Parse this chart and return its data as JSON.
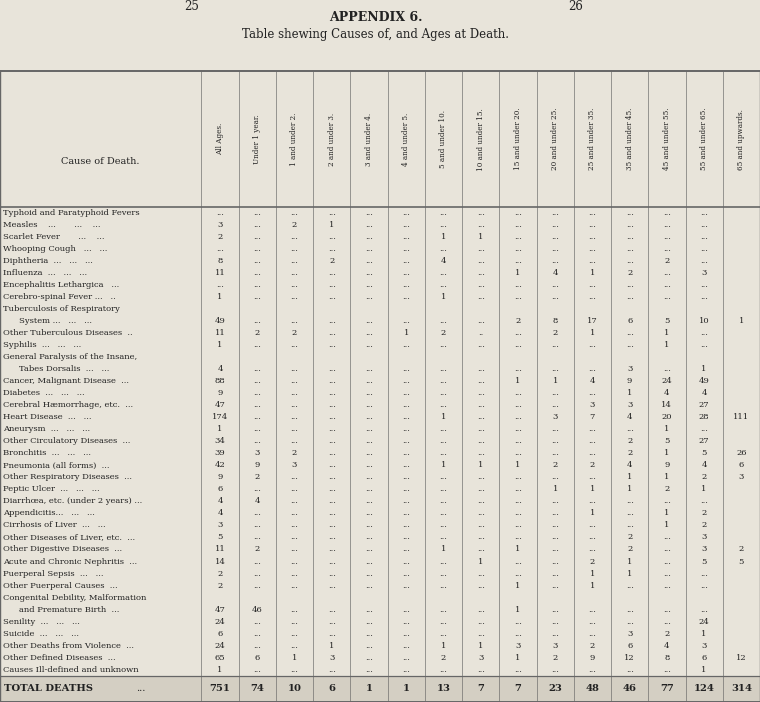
{
  "title1": "APPENDIX 6.",
  "title2": "Table shewing Causes of, and Ages at Death.",
  "page_left": "25",
  "page_right": "26",
  "col_headers": [
    "All Ages.",
    "Under 1 year.",
    "1 and under 2.",
    "2 and under 3.",
    "3 and under 4.",
    "4 and under 5.",
    "5 and under 10.",
    "10 and under 15.",
    "15 and under 20.",
    "20 and under 25.",
    "25 and under 35.",
    "35 and under 45.",
    "45 and under 55.",
    "55 and under 65.",
    "65 and upwards."
  ],
  "rows": [
    [
      "Typhoid and Paratyphoid Fevers",
      "...",
      "...",
      "...",
      "...",
      "...",
      "...",
      "...",
      "...",
      "...",
      "...",
      "...",
      "...",
      "...",
      "..."
    ],
    [
      "Measles    ...       ...    ...",
      "3",
      "...",
      "2",
      "1",
      "...",
      "...",
      "...",
      "...",
      "...",
      "...",
      "...",
      "...",
      "...",
      "..."
    ],
    [
      "Scarlet Fever       ...    ...",
      "2",
      "...",
      "...",
      "...",
      "...",
      "...",
      "1",
      "1",
      "...",
      "...",
      "...",
      "...",
      "...",
      "..."
    ],
    [
      "Whooping Cough   ...   ...",
      "...",
      "...",
      "...",
      "...",
      "...",
      "...",
      "...",
      "...",
      "...",
      "...",
      "...",
      "...",
      "...",
      "..."
    ],
    [
      "Diphtheria  ...   ...   ...",
      "8",
      "...",
      "...",
      "2",
      "...",
      "...",
      "4",
      "...",
      "...",
      "...",
      "...",
      "...",
      "2",
      "..."
    ],
    [
      "Influenza  ...   ...   ...",
      "11",
      "...",
      "...",
      "...",
      "...",
      "...",
      "...",
      "...",
      "1",
      "4",
      "1",
      "2",
      "...",
      "3"
    ],
    [
      "Encephalitis Lethargica   ...",
      "...",
      "...",
      "...",
      "...",
      "...",
      "...",
      "...",
      "...",
      "...",
      "...",
      "...",
      "...",
      "...",
      "..."
    ],
    [
      "Cerebro-spinal Fever ...   ..",
      "1",
      "...",
      "...",
      "...",
      "...",
      "...",
      "1",
      "...",
      "...",
      "...",
      "...",
      "...",
      "...",
      "..."
    ],
    [
      "Tuberculosis of Respiratory",
      "",
      "",
      "",
      "",
      "",
      "",
      "",
      "",
      "",
      "",
      "",
      "",
      "",
      ""
    ],
    [
      "    System ...   ...   ...",
      "49",
      "...",
      "...",
      "...",
      "...",
      "...",
      "...",
      "...",
      "2",
      "8",
      "17",
      "6",
      "5",
      "10",
      "1"
    ],
    [
      "Other Tuberculous Diseases  ..",
      "11",
      "2",
      "2",
      "...",
      "...",
      "1",
      "2",
      "..",
      "...",
      "2",
      "1",
      "...",
      "1",
      "..."
    ],
    [
      "Syphilis  ...   ...   ...",
      "1",
      "...",
      "...",
      "...",
      "...",
      "...",
      "...",
      "...",
      "...",
      "...",
      "...",
      "...",
      "1",
      "..."
    ],
    [
      "General Paralysis of the Insane,",
      "",
      "",
      "",
      "",
      "",
      "",
      "",
      "",
      "",
      "",
      "",
      "",
      "",
      ""
    ],
    [
      "    Tabes Dorsalis  ...   ...",
      "4",
      "...",
      "...",
      "...",
      "...",
      "...",
      "...",
      "...",
      "...",
      "...",
      "...",
      "3",
      "...",
      "1"
    ],
    [
      "Cancer, Malignant Disease  ...",
      "88",
      "...",
      "...",
      "...",
      "...",
      "...",
      "...",
      "...",
      "1",
      "1",
      "4",
      "9",
      "24",
      "49"
    ],
    [
      "Diabetes  ...   ...   ...",
      "9",
      "...",
      "...",
      "...",
      "...",
      "...",
      "...",
      "...",
      "...",
      "...",
      "...",
      "1",
      "4",
      "4"
    ],
    [
      "Cerebral Hæmorrhage, etc.  ...",
      "47",
      "...",
      "...",
      "...",
      "...",
      "...",
      "...",
      "...",
      "...",
      "...",
      "3",
      "3",
      "14",
      "27"
    ],
    [
      "Heart Disease  ...   ...",
      "174",
      "...",
      "...",
      "...",
      "...",
      "...",
      "1",
      "...",
      "...",
      "3",
      "7",
      "4",
      "20",
      "28",
      "111"
    ],
    [
      "Aneurysm  ...   ...   ...",
      "1",
      "...",
      "...",
      "...",
      "...",
      "...",
      "...",
      "...",
      "...",
      "...",
      "...",
      "...",
      "1",
      "..."
    ],
    [
      "Other Circulatory Diseases  ...",
      "34",
      "...",
      "...",
      "...",
      "...",
      "...",
      "...",
      "...",
      "...",
      "...",
      "...",
      "2",
      "5",
      "27"
    ],
    [
      "Bronchitis  ...   ...   ...",
      "39",
      "3",
      "2",
      "...",
      "...",
      "...",
      "...",
      "...",
      "...",
      "...",
      "...",
      "2",
      "1",
      "5",
      "26"
    ],
    [
      "Pneumonia (all forms)  ...",
      "42",
      "9",
      "3",
      "...",
      "...",
      "...",
      "1",
      "1",
      "1",
      "2",
      "2",
      "4",
      "9",
      "4",
      "6"
    ],
    [
      "Other Respiratory Diseases  ...",
      "9",
      "2",
      "...",
      "...",
      "...",
      "...",
      "...",
      "...",
      "...",
      "...",
      "...",
      "1",
      "1",
      "2",
      "3"
    ],
    [
      "Peptic Ulcer  ...   ...   ...",
      "6",
      "...",
      "...",
      "...",
      "...",
      "...",
      "...",
      "...",
      "...",
      "1",
      "1",
      "1",
      "2",
      "1"
    ],
    [
      "Diarrhœa, etc. (under 2 years) ...",
      "4",
      "4",
      "...",
      "...",
      "...",
      "...",
      "...",
      "...",
      "...",
      "...",
      "...",
      "...",
      "...",
      "..."
    ],
    [
      "Appendicitis...   ...   ...",
      "4",
      "...",
      "...",
      "...",
      "...",
      "...",
      "...",
      "...",
      "...",
      "...",
      "1",
      "...",
      "1",
      "2"
    ],
    [
      "Cirrhosis of Liver  ...   ...",
      "3",
      "...",
      "...",
      "...",
      "...",
      "...",
      "...",
      "...",
      "...",
      "...",
      "...",
      "...",
      "1",
      "2"
    ],
    [
      "Other Diseases of Liver, etc.  ...",
      "5",
      "...",
      "...",
      "...",
      "...",
      "...",
      "...",
      "...",
      "...",
      "...",
      "...",
      "2",
      "...",
      "3"
    ],
    [
      "Other Digestive Diseases  ...",
      "11",
      "2",
      "...",
      "...",
      "...",
      "...",
      "1",
      "...",
      "1",
      "...",
      "...",
      "2",
      "...",
      "3",
      "2"
    ],
    [
      "Acute and Chronic Nephritis  ...",
      "14",
      "...",
      "...",
      "...",
      "...",
      "...",
      "...",
      "1",
      "...",
      "...",
      "2",
      "1",
      "...",
      "5",
      "5"
    ],
    [
      "Puerperal Sepsis  ...   ...",
      "2",
      "...",
      "...",
      "...",
      "...",
      "...",
      "...",
      "...",
      "...",
      "...",
      "1",
      "1",
      "...",
      "..."
    ],
    [
      "Other Puerperal Causes  ...",
      "2",
      "...",
      "...",
      "...",
      "...",
      "...",
      "...",
      "...",
      "1",
      "...",
      "1",
      "...",
      "...",
      "..."
    ],
    [
      "Congenital Debility, Malformation",
      "",
      "",
      "",
      "",
      "",
      "",
      "",
      "",
      "",
      "",
      "",
      "",
      "",
      ""
    ],
    [
      "    and Premature Birth  ...",
      "47",
      "46",
      "...",
      "...",
      "...",
      "...",
      "...",
      "...",
      "1",
      "...",
      "...",
      "...",
      "...",
      "..."
    ],
    [
      "Senility  ...   ...   ...",
      "24",
      "...",
      "...",
      "...",
      "...",
      "...",
      "...",
      "...",
      "...",
      "...",
      "...",
      "...",
      "...",
      "24"
    ],
    [
      "Suicide  ...   ...   ...",
      "6",
      "...",
      "...",
      "...",
      "...",
      "...",
      "...",
      "...",
      "...",
      "...",
      "...",
      "3",
      "2",
      "1"
    ],
    [
      "Other Deaths from Violence  ...",
      "24",
      "...",
      "...",
      "1",
      "...",
      "...",
      "1",
      "1",
      "3",
      "3",
      "2",
      "6",
      "4",
      "3"
    ],
    [
      "Other Defined Diseases  ...",
      "65",
      "6",
      "1",
      "3",
      "...",
      "...",
      "2",
      "3",
      "1",
      "2",
      "9",
      "12",
      "8",
      "6",
      "12"
    ],
    [
      "Causes Ill-defined and unknown",
      "1",
      "...",
      "...",
      "...",
      "...",
      "...",
      "...",
      "...",
      "...",
      "...",
      "...",
      "...",
      "...",
      "1"
    ]
  ],
  "total_row": [
    "TOTAL DEATHS   ...",
    "751",
    "74",
    "10",
    "6",
    "1",
    "1",
    "13",
    "7",
    "7",
    "23",
    "48",
    "46",
    "77",
    "124",
    "314"
  ],
  "bg_color": "#e8e4da",
  "text_color": "#222222",
  "line_color": "#666666"
}
